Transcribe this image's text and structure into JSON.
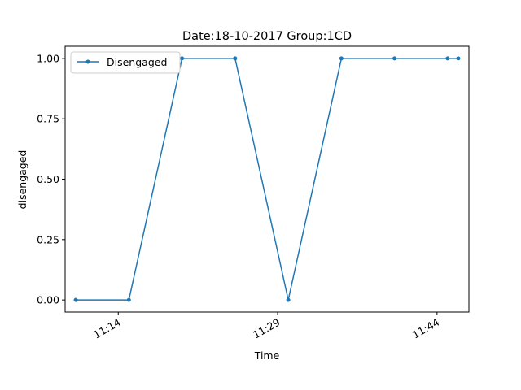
{
  "chart_data": {
    "type": "line",
    "title": "Date:18-10-2017  Group:1CD",
    "xlabel": "Time",
    "ylabel": "disengaged",
    "x_ticks": [
      "11:14",
      "11:29",
      "11:44"
    ],
    "y_ticks": [
      "0.00",
      "0.25",
      "0.50",
      "0.75",
      "1.00"
    ],
    "ylim": [
      -0.05,
      1.05
    ],
    "xlim": [
      "11:09",
      "11:47"
    ],
    "legend_position": "top-left",
    "grid": false,
    "series": [
      {
        "name": "Disengaged",
        "color": "#1f77b4",
        "x": [
          "11:10",
          "11:15",
          "11:20",
          "11:25",
          "11:30",
          "11:35",
          "11:40",
          "11:45",
          "11:46"
        ],
        "y": [
          0,
          0,
          1,
          1,
          0,
          1,
          1,
          1,
          1
        ]
      }
    ]
  }
}
